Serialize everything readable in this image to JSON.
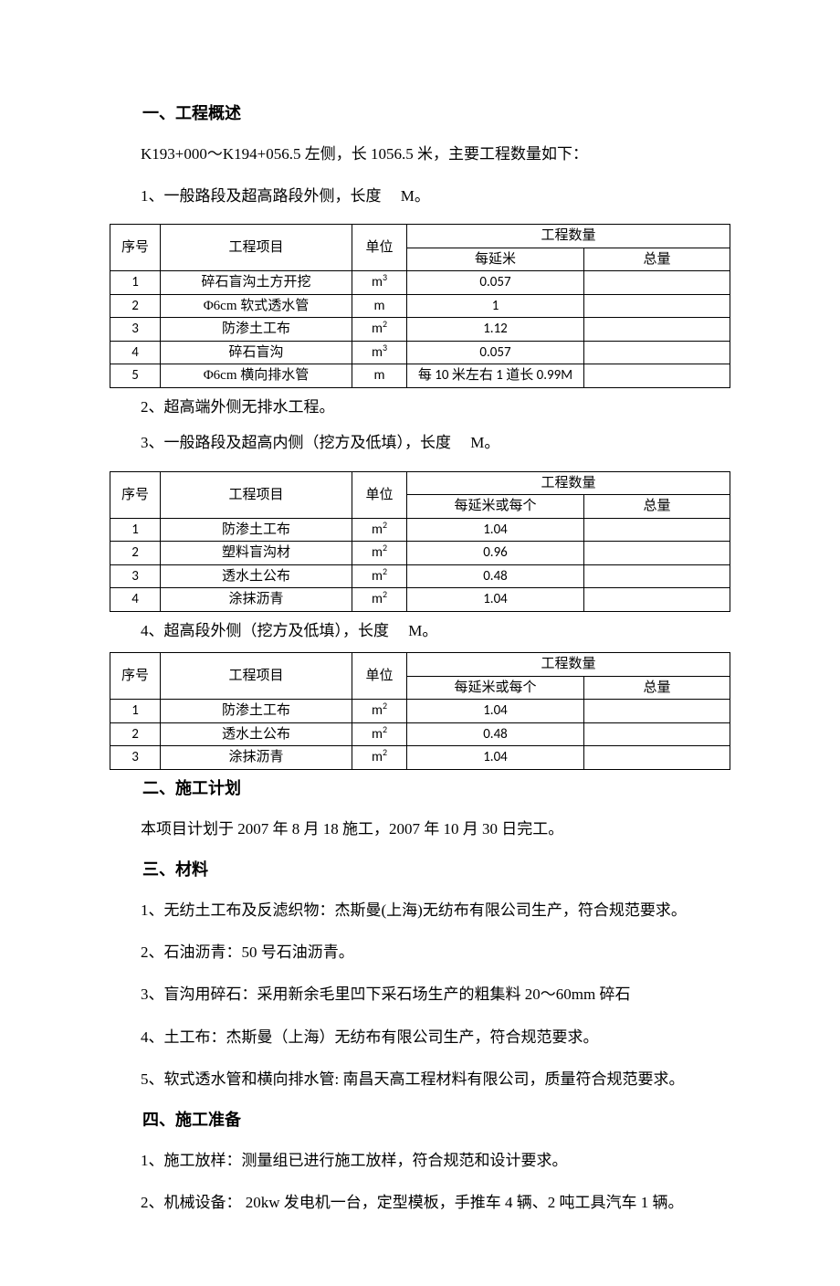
{
  "section1": {
    "heading": "一、工程概述",
    "p1": "K193+000～K194+056.5 左侧，长 1056.5 米，主要工程数量如下：",
    "p2": "1、一般路段及超高路段外侧，长度　 M。",
    "p3": "2、超高端外侧无排水工程。",
    "p4": "3、一般路段及超高内侧（挖方及低填），长度　 M。",
    "p5": "4、超高段外侧（挖方及低填），长度　 M。"
  },
  "section2": {
    "heading": "二、施工计划",
    "p1": "本项目计划于 2007 年 8 月 18 施工，2007 年 10 月 30 日完工。"
  },
  "section3": {
    "heading": "三、材料",
    "p1": "1、无纺土工布及反滤织物：杰斯曼(上海)无纺布有限公司生产，符合规范要求。",
    "p2": "2、石油沥青：50 号石油沥青。",
    "p3": "3、盲沟用碎石：采用新余毛里凹下采石场生产的粗集料 20～60mm 碎石",
    "p4": "4、土工布：杰斯曼（上海）无纺布有限公司生产，符合规范要求。",
    "p5": "5、软式透水管和横向排水管: 南昌天高工程材料有限公司，质量符合规范要求。"
  },
  "section4": {
    "heading": "四、施工准备",
    "p1": "1、施工放样：测量组已进行施工放样，符合规范和设计要求。",
    "p2": "2、机械设备： 20kw 发电机一台，定型模板，手推车 4 辆、2 吨工具汽车 1 辆。"
  },
  "table_headers": {
    "seq": "序号",
    "item": "工程项目",
    "unit": "单位",
    "qty": "工程数量",
    "per_m": "每延米",
    "per_m_or": "每延米或每个",
    "total": "总量"
  },
  "table1": {
    "col_widths": [
      "55px",
      "210px",
      "60px",
      "auto",
      "160px"
    ],
    "rows": [
      {
        "seq": "1",
        "item": "碎石盲沟土方开挖",
        "unit_html": "m<sup>3</sup>",
        "per": "0.057",
        "total": ""
      },
      {
        "seq": "2",
        "item": "Φ6cm 软式透水管",
        "unit_html": "m",
        "per": "1",
        "total": ""
      },
      {
        "seq": "3",
        "item": "防渗土工布",
        "unit_html": "m<sup>2</sup>",
        "per": "1.12",
        "total": ""
      },
      {
        "seq": "4",
        "item": "碎石盲沟",
        "unit_html": "m<sup>3</sup>",
        "per": "0.057",
        "total": ""
      },
      {
        "seq": "5",
        "item": "Φ6cm 横向排水管",
        "unit_html": "m",
        "per": "每 10 米左右 1 道长 0.99M",
        "total": ""
      }
    ]
  },
  "table2": {
    "col_widths": [
      "55px",
      "210px",
      "60px",
      "auto",
      "160px"
    ],
    "rows": [
      {
        "seq": "1",
        "item": "防渗土工布",
        "unit_html": "m<sup>2</sup>",
        "per": "1.04",
        "total": ""
      },
      {
        "seq": "2",
        "item": "塑料盲沟材",
        "unit_html": "m<sup>2</sup>",
        "per": "0.96",
        "total": ""
      },
      {
        "seq": "3",
        "item": "透水土公布",
        "unit_html": "m<sup>2</sup>",
        "per": "0.48",
        "total": ""
      },
      {
        "seq": "4",
        "item": "涂抹沥青",
        "unit_html": "m<sup>2</sup>",
        "per": "1.04",
        "total": ""
      }
    ]
  },
  "table3": {
    "col_widths": [
      "55px",
      "210px",
      "60px",
      "auto",
      "160px"
    ],
    "rows": [
      {
        "seq": "1",
        "item": "防渗土工布",
        "unit_html": "m<sup>2</sup>",
        "per": "1.04",
        "total": ""
      },
      {
        "seq": "2",
        "item": "透水土公布",
        "unit_html": "m<sup>2</sup>",
        "per": "0.48",
        "total": ""
      },
      {
        "seq": "3",
        "item": "涂抹沥青",
        "unit_html": "m<sup>2</sup>",
        "per": "1.04",
        "total": ""
      }
    ]
  }
}
